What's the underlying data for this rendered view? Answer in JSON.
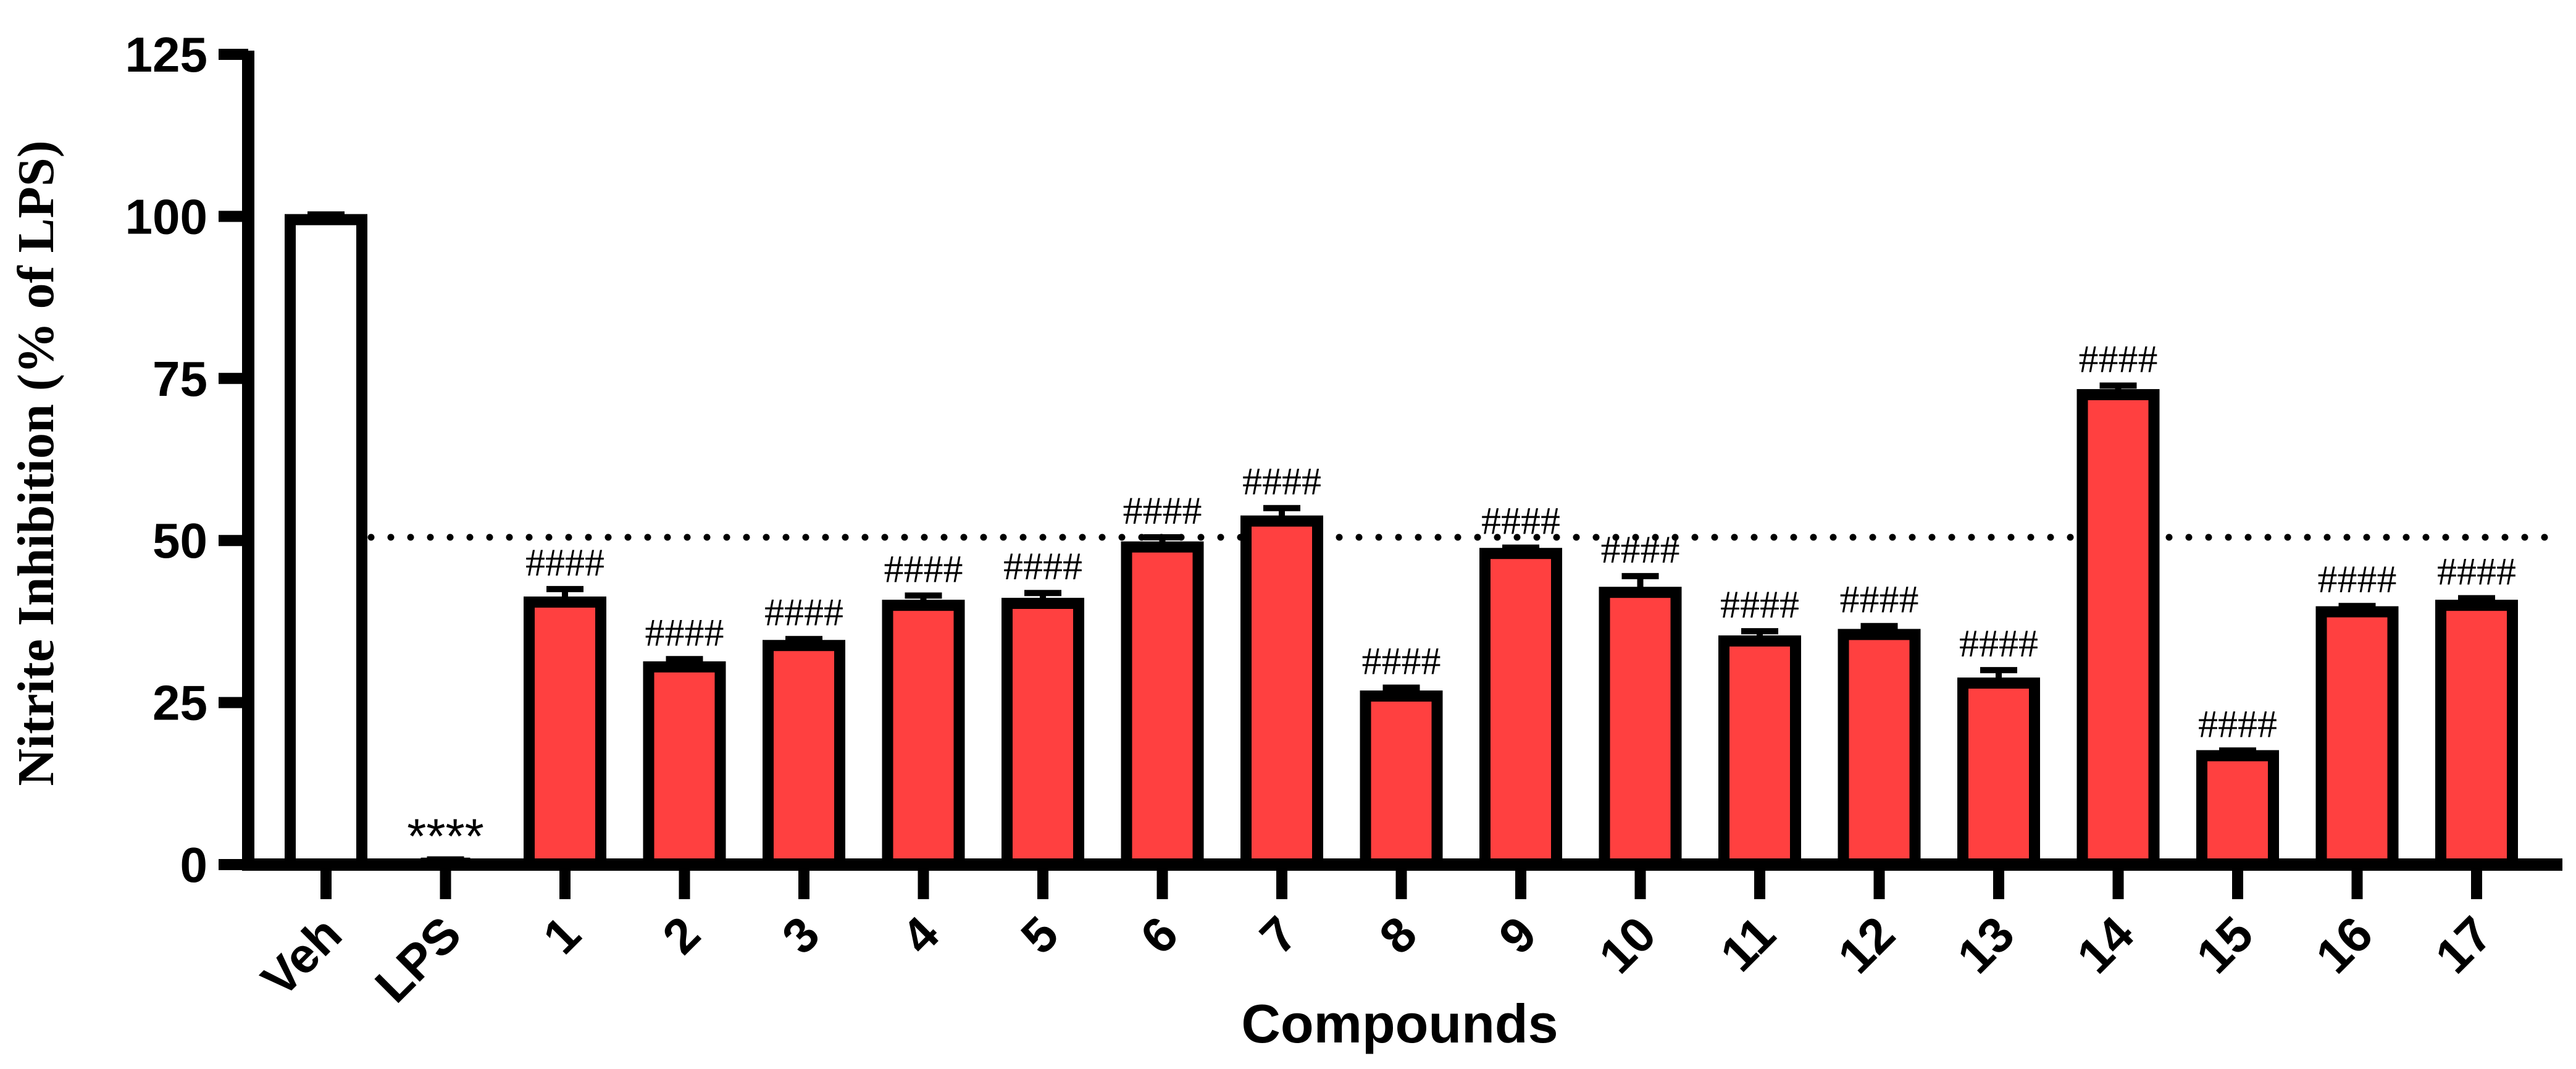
{
  "chart_data": {
    "type": "bar",
    "title": "",
    "xlabel": "Compounds",
    "ylabel": "Nitrite Inhibition (% of LPS)",
    "ylim": [
      0,
      125
    ],
    "yticks": [
      0,
      25,
      50,
      75,
      100,
      125
    ],
    "ytick_labels": [
      "0",
      "25",
      "50",
      "75",
      "100",
      "125"
    ],
    "grid": false,
    "legend": "none",
    "categories": [
      "Veh",
      "LPS",
      "1",
      "2",
      "3",
      "4",
      "5",
      "6",
      "7",
      "8",
      "9",
      "10",
      "11",
      "12",
      "13",
      "14",
      "15",
      "16",
      "17"
    ],
    "values": [
      99.5,
      0.5,
      40.5,
      30.5,
      33.8,
      40.0,
      40.3,
      49.0,
      53.0,
      26.0,
      48.0,
      42.0,
      34.5,
      35.5,
      28.0,
      72.5,
      16.8,
      39.0,
      40.0
    ],
    "errors": [
      0.8,
      0.3,
      2.0,
      1.2,
      1.0,
      1.5,
      1.6,
      1.5,
      2.0,
      1.3,
      0.9,
      2.5,
      1.5,
      1.3,
      2.0,
      1.4,
      0.8,
      0.9,
      1.1
    ],
    "annotations": [
      "",
      "****",
      "####",
      "####",
      "####",
      "####",
      "####",
      "####",
      "####",
      "####",
      "####",
      "####",
      "####",
      "####",
      "####",
      "####",
      "####",
      "####",
      "####"
    ],
    "reference_line": {
      "y": 50.5,
      "style": "dotted"
    },
    "colors": {
      "vehicle_fill": "#ffffff",
      "compound_fill": "#ff4040",
      "stroke": "#000000"
    }
  }
}
